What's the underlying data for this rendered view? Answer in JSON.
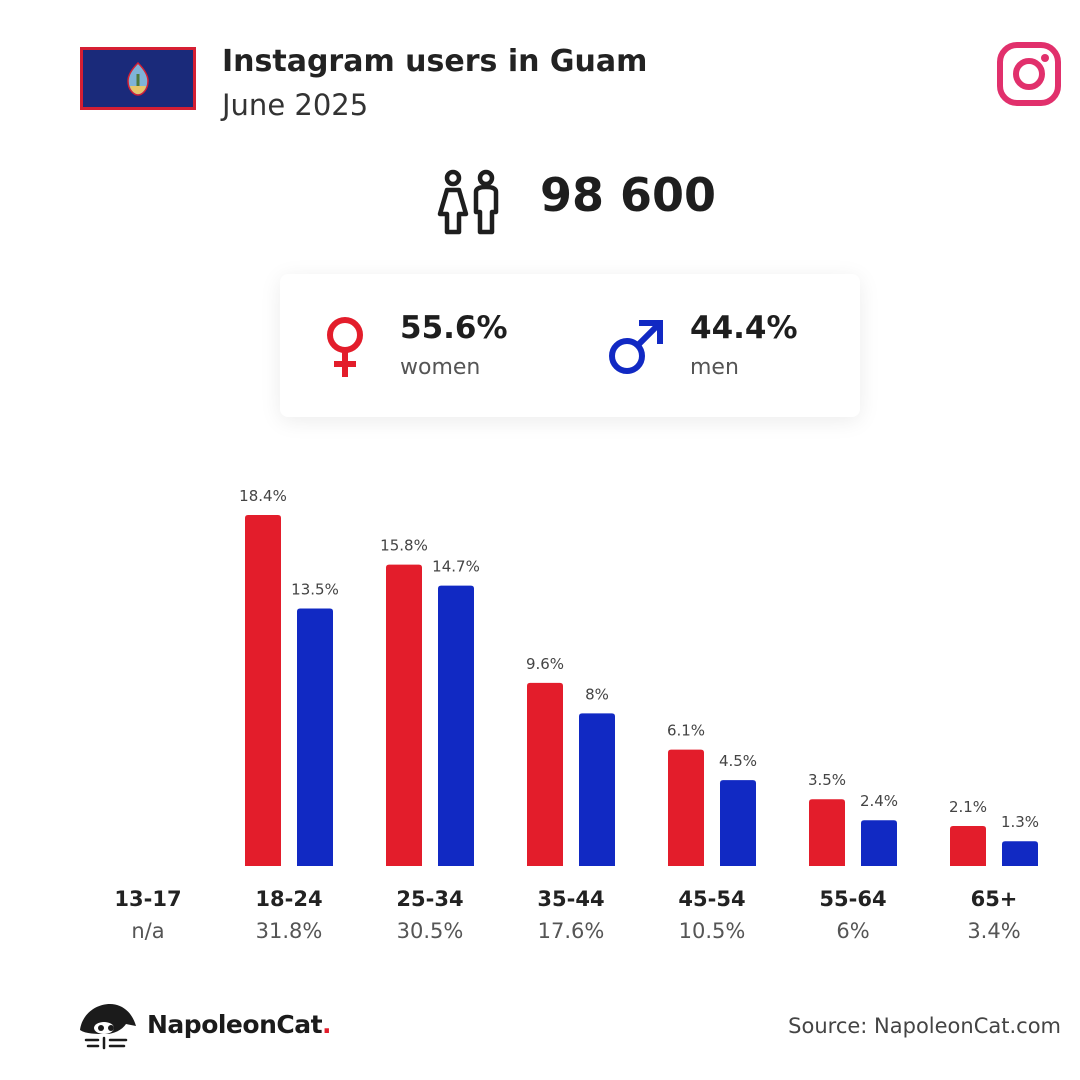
{
  "header": {
    "title": "Instagram users in Guam",
    "subtitle": "June 2025",
    "flag_icon": "guam-flag-icon",
    "platform_icon": "instagram-icon"
  },
  "total": {
    "icon": "people-icon",
    "value": "98 600"
  },
  "gender": {
    "women": {
      "pct": "55.6%",
      "label": "women",
      "icon": "female-symbol-icon",
      "color": "#e31d2b"
    },
    "men": {
      "pct": "44.4%",
      "label": "men",
      "icon": "male-symbol-icon",
      "color": "#1129c3"
    }
  },
  "chart_data": {
    "type": "bar",
    "categories": [
      "13-17",
      "18-24",
      "25-34",
      "35-44",
      "45-54",
      "55-64",
      "65+"
    ],
    "category_totals": [
      "n/a",
      "31.8%",
      "30.5%",
      "17.6%",
      "10.5%",
      "6%",
      "3.4%"
    ],
    "series": [
      {
        "name": "women",
        "color": "#e31d2b",
        "values": [
          null,
          18.4,
          15.8,
          9.6,
          6.1,
          3.5,
          2.1
        ],
        "labels": [
          "",
          "18.4%",
          "15.8%",
          "9.6%",
          "6.1%",
          "3.5%",
          "2.1%"
        ]
      },
      {
        "name": "men",
        "color": "#1129c3",
        "values": [
          null,
          13.5,
          14.7,
          8,
          4.5,
          2.4,
          1.3
        ],
        "labels": [
          "",
          "13.5%",
          "14.7%",
          "8%",
          "4.5%",
          "2.4%",
          "1.3%"
        ]
      }
    ],
    "ylim": [
      0,
      18.4
    ],
    "grid": false,
    "legend": "none"
  },
  "footer": {
    "brand_name": "NapoleonCat",
    "brand_dot": ".",
    "brand_icon": "napoleoncat-logo-icon",
    "source": "Source: NapoleonCat.com"
  }
}
